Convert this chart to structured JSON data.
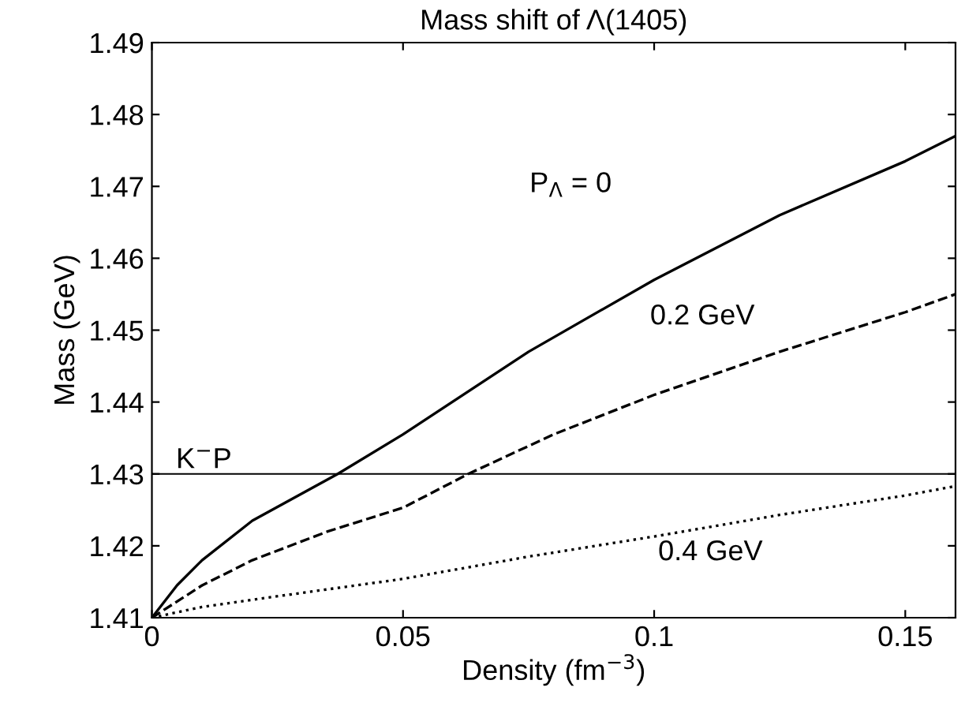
{
  "chart_data": {
    "type": "line",
    "title": "Mass shift of Λ(1405)",
    "xlabel": "Density (fm$^{−3}$)",
    "ylabel": "Mass (GeV)",
    "xlim": [
      0,
      0.16
    ],
    "ylim": [
      1.41,
      1.49
    ],
    "xticks": [
      0,
      0.05,
      0.1,
      0.15
    ],
    "yticks": [
      1.41,
      1.42,
      1.43,
      1.44,
      1.45,
      1.46,
      1.47,
      1.48,
      1.49
    ],
    "grid": false,
    "legend": false,
    "marker": "none",
    "series": [
      {
        "color": "#000000",
        "line_style": "solid",
        "x": [
          0,
          0.005,
          0.01,
          0.02,
          0.037,
          0.05,
          0.075,
          0.1,
          0.125,
          0.15,
          0.16
        ],
        "values": [
          1.41,
          1.4145,
          1.418,
          1.4235,
          1.43,
          1.4355,
          1.447,
          1.457,
          1.466,
          1.4735,
          1.477
        ]
      },
      {
        "color": "#000000",
        "line_style": "dashed",
        "x": [
          0,
          0.01,
          0.02,
          0.035,
          0.05,
          0.063,
          0.08,
          0.1,
          0.125,
          0.15,
          0.16
        ],
        "values": [
          1.41,
          1.4145,
          1.418,
          1.422,
          1.4253,
          1.43,
          1.4355,
          1.441,
          1.447,
          1.4525,
          1.455
        ]
      },
      {
        "color": "#000000",
        "line_style": "dotted",
        "x": [
          0,
          0.01,
          0.02,
          0.05,
          0.075,
          0.1,
          0.125,
          0.15,
          0.16
        ],
        "values": [
          1.41,
          1.4115,
          1.4125,
          1.4154,
          1.4185,
          1.4213,
          1.4243,
          1.427,
          1.4283
        ]
      }
    ],
    "ref_lines": [
      {
        "axis": "y",
        "value": 1.43,
        "label": "K$^{−}$P",
        "color": "#000000",
        "line_style": "solid"
      }
    ],
    "annotations": [
      "P$_{Λ}$ = 0",
      "0.2 GeV",
      "0.4 GeV"
    ]
  }
}
